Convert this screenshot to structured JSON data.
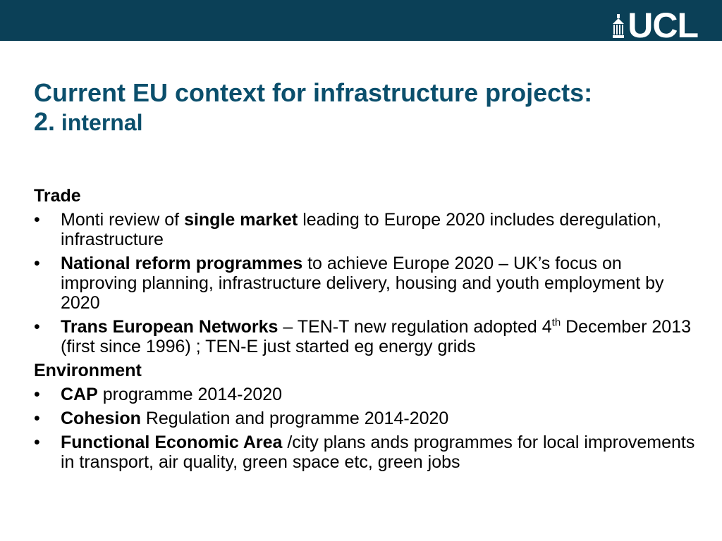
{
  "header": {
    "logo_text": "UCL",
    "bar_color": "#0b4057"
  },
  "title": {
    "line1": "Current EU context for infrastructure projects:",
    "line2_number": "2.",
    "line2_text": "internal",
    "color": "#0b4f6c"
  },
  "sections": {
    "trade": {
      "heading": "Trade",
      "bullets": [
        {
          "pre": "Monti review of ",
          "bold": "single market",
          "post": " leading to Europe 2020 includes deregulation, infrastructure"
        },
        {
          "pre": "",
          "bold": "National reform programmes",
          "post": " to achieve Europe 2020 – UK’s focus on improving planning, infrastructure delivery, housing and youth employment by 2020"
        },
        {
          "pre": "",
          "bold": "Trans European Networks",
          "post": " – TEN-T new regulation adopted 4",
          "sup": "th",
          "post2": " December 2013 (first since 1996) ; TEN-E just started eg energy grids"
        }
      ]
    },
    "environment": {
      "heading": "Environment",
      "bullets": [
        {
          "pre": "",
          "bold": "CAP",
          "post": " programme 2014-2020"
        },
        {
          "pre": "",
          "bold": "Cohesion",
          "post": " Regulation and programme 2014-2020"
        },
        {
          "pre": "",
          "bold": "Functional Economic Area",
          "post": " /city plans ands programmes for local improvements in transport, air quality, green space etc, green jobs"
        }
      ]
    }
  },
  "bullet_glyph": "•"
}
